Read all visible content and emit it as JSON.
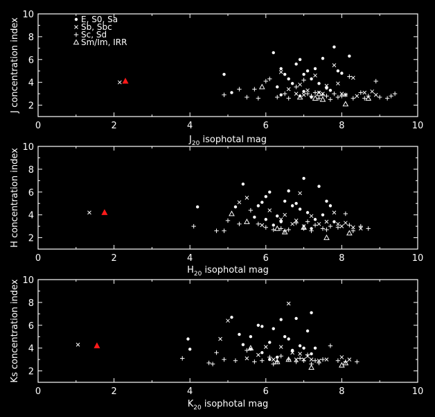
{
  "chart_data": [
    {
      "type": "scatter",
      "xlabel": "J",
      "xlabel_sub": "20",
      "xlabel_rest": " isophotal mag",
      "ylabel": "J concentration index",
      "xlim": [
        0,
        10
      ],
      "ylim": [
        1,
        10
      ],
      "xticks": [
        0,
        2,
        4,
        6,
        8,
        10
      ],
      "yticks": [
        2,
        4,
        6,
        8,
        10
      ],
      "legend": {
        "placement": "top-left",
        "entries": [
          {
            "symbol": "dot",
            "label": "E, S0, Sa"
          },
          {
            "symbol": "cross",
            "label": "Sb, Sbc"
          },
          {
            "symbol": "plus",
            "label": "Sc, Sd"
          },
          {
            "symbol": "triangle",
            "label": "Sm/Im, IRR"
          }
        ]
      },
      "series": [
        {
          "symbol": "dot",
          "points": [
            [
              4.9,
              4.7
            ],
            [
              6.2,
              6.6
            ],
            [
              6.4,
              5.2
            ],
            [
              6.5,
              4.7
            ],
            [
              6.6,
              4.3
            ],
            [
              6.8,
              5.6
            ],
            [
              6.9,
              6.0
            ],
            [
              7.0,
              4.7
            ],
            [
              7.1,
              5.0
            ],
            [
              7.2,
              4.3
            ],
            [
              7.3,
              5.2
            ],
            [
              7.4,
              3.9
            ],
            [
              7.5,
              6.1
            ],
            [
              7.6,
              3.5
            ],
            [
              7.8,
              7.1
            ],
            [
              7.9,
              5.0
            ],
            [
              8.0,
              4.8
            ],
            [
              8.2,
              6.3
            ],
            [
              6.3,
              3.6
            ],
            [
              6.7,
              3.9
            ],
            [
              7.0,
              3.2
            ],
            [
              5.1,
              3.1
            ],
            [
              7.7,
              3.3
            ],
            [
              6.9,
              2.8
            ],
            [
              6.4,
              2.9
            ],
            [
              7.2,
              2.7
            ]
          ]
        },
        {
          "symbol": "cross",
          "points": [
            [
              2.15,
              4.0
            ],
            [
              6.4,
              4.9
            ],
            [
              6.6,
              3.4
            ],
            [
              6.9,
              3.8
            ],
            [
              7.1,
              3.3
            ],
            [
              7.3,
              4.6
            ],
            [
              7.5,
              3.0
            ],
            [
              7.6,
              3.7
            ],
            [
              7.8,
              5.5
            ],
            [
              7.9,
              3.9
            ],
            [
              8.0,
              3.0
            ],
            [
              8.1,
              2.9
            ],
            [
              8.3,
              4.4
            ],
            [
              8.4,
              2.8
            ],
            [
              8.6,
              3.1
            ],
            [
              8.8,
              3.2
            ],
            [
              8.9,
              2.9
            ],
            [
              7.0,
              2.9
            ],
            [
              6.8,
              3.0
            ],
            [
              7.4,
              3.1
            ]
          ]
        },
        {
          "symbol": "plus",
          "points": [
            [
              4.9,
              2.9
            ],
            [
              5.3,
              3.4
            ],
            [
              5.5,
              2.7
            ],
            [
              5.7,
              3.4
            ],
            [
              5.8,
              2.6
            ],
            [
              6.0,
              4.1
            ],
            [
              6.1,
              4.3
            ],
            [
              6.3,
              2.7
            ],
            [
              6.5,
              3.0
            ],
            [
              6.8,
              3.6
            ],
            [
              7.0,
              4.2
            ],
            [
              7.1,
              3.0
            ],
            [
              7.2,
              2.8
            ],
            [
              7.3,
              3.1
            ],
            [
              7.5,
              2.9
            ],
            [
              7.6,
              2.8
            ],
            [
              7.8,
              3.0
            ],
            [
              8.0,
              2.8
            ],
            [
              8.2,
              4.5
            ],
            [
              8.3,
              2.6
            ],
            [
              8.5,
              3.1
            ],
            [
              8.7,
              2.8
            ],
            [
              8.9,
              4.1
            ],
            [
              9.0,
              2.7
            ],
            [
              9.2,
              2.6
            ],
            [
              9.4,
              3.0
            ],
            [
              7.7,
              2.5
            ],
            [
              7.9,
              2.7
            ],
            [
              6.6,
              2.6
            ],
            [
              7.4,
              2.6
            ],
            [
              8.1,
              2.9
            ],
            [
              8.6,
              2.6
            ],
            [
              9.3,
              2.8
            ]
          ]
        },
        {
          "symbol": "triangle",
          "points": [
            [
              5.9,
              3.6
            ],
            [
              7.4,
              3.0
            ],
            [
              7.3,
              2.6
            ],
            [
              7.5,
              2.5
            ],
            [
              8.1,
              2.1
            ],
            [
              8.7,
              2.6
            ],
            [
              6.9,
              2.7
            ]
          ]
        },
        {
          "symbol": "red-triangle",
          "points": [
            [
              2.3,
              4.1
            ]
          ]
        }
      ]
    },
    {
      "type": "scatter",
      "xlabel": "H",
      "xlabel_sub": "20",
      "xlabel_rest": " isophotal mag",
      "ylabel": "H concentration index",
      "xlim": [
        0,
        10
      ],
      "ylim": [
        1,
        10
      ],
      "xticks": [
        0,
        2,
        4,
        6,
        8,
        10
      ],
      "yticks": [
        2,
        4,
        6,
        8,
        10
      ],
      "series": [
        {
          "symbol": "dot",
          "points": [
            [
              4.2,
              4.7
            ],
            [
              5.4,
              6.7
            ],
            [
              5.2,
              4.7
            ],
            [
              5.9,
              5.1
            ],
            [
              6.0,
              5.6
            ],
            [
              6.1,
              6.0
            ],
            [
              6.3,
              3.9
            ],
            [
              6.5,
              5.2
            ],
            [
              6.6,
              6.1
            ],
            [
              6.7,
              4.8
            ],
            [
              6.8,
              5.0
            ],
            [
              6.9,
              4.5
            ],
            [
              7.0,
              7.2
            ],
            [
              7.1,
              4.2
            ],
            [
              7.3,
              3.6
            ],
            [
              7.4,
              6.5
            ],
            [
              7.5,
              4.0
            ],
            [
              7.6,
              5.2
            ],
            [
              7.7,
              4.8
            ],
            [
              7.8,
              3.4
            ],
            [
              5.7,
              3.8
            ],
            [
              6.0,
              3.6
            ],
            [
              6.4,
              3.4
            ],
            [
              5.8,
              4.8
            ],
            [
              7.2,
              2.8
            ],
            [
              6.2,
              3.1
            ]
          ]
        },
        {
          "symbol": "cross",
          "points": [
            [
              1.35,
              4.2
            ],
            [
              5.3,
              5.1
            ],
            [
              5.9,
              3.1
            ],
            [
              6.1,
              4.4
            ],
            [
              6.4,
              3.6
            ],
            [
              6.5,
              4.0
            ],
            [
              6.7,
              3.2
            ],
            [
              6.9,
              5.9
            ],
            [
              7.0,
              3.0
            ],
            [
              7.2,
              3.9
            ],
            [
              7.4,
              3.2
            ],
            [
              7.6,
              3.4
            ],
            [
              7.8,
              4.2
            ],
            [
              8.0,
              3.0
            ],
            [
              8.1,
              3.3
            ],
            [
              8.3,
              2.9
            ],
            [
              8.5,
              2.8
            ],
            [
              5.5,
              5.5
            ],
            [
              6.8,
              3.5
            ],
            [
              7.9,
              3.2
            ]
          ]
        },
        {
          "symbol": "plus",
          "points": [
            [
              4.1,
              3.0
            ],
            [
              4.7,
              2.6
            ],
            [
              4.9,
              2.6
            ],
            [
              5.0,
              3.5
            ],
            [
              5.3,
              3.2
            ],
            [
              5.6,
              4.4
            ],
            [
              5.8,
              3.2
            ],
            [
              6.0,
              2.9
            ],
            [
              6.2,
              2.7
            ],
            [
              6.4,
              2.8
            ],
            [
              6.6,
              2.7
            ],
            [
              6.8,
              3.3
            ],
            [
              7.0,
              2.8
            ],
            [
              7.1,
              3.4
            ],
            [
              7.2,
              2.6
            ],
            [
              7.3,
              3.1
            ],
            [
              7.5,
              2.8
            ],
            [
              7.7,
              3.0
            ],
            [
              7.9,
              2.9
            ],
            [
              8.1,
              4.1
            ],
            [
              8.3,
              2.6
            ],
            [
              8.5,
              3.0
            ],
            [
              8.7,
              2.8
            ],
            [
              6.5,
              2.6
            ],
            [
              7.6,
              2.7
            ],
            [
              8.2,
              3.1
            ]
          ]
        },
        {
          "symbol": "triangle",
          "points": [
            [
              5.1,
              4.1
            ],
            [
              5.5,
              3.4
            ],
            [
              6.5,
              2.5
            ],
            [
              7.6,
              2.0
            ],
            [
              8.2,
              2.4
            ],
            [
              7.0,
              2.9
            ],
            [
              6.3,
              2.8
            ]
          ]
        },
        {
          "symbol": "red-triangle",
          "points": [
            [
              1.75,
              4.2
            ]
          ]
        }
      ]
    },
    {
      "type": "scatter",
      "xlabel": "K",
      "xlabel_sub": "20",
      "xlabel_rest": " isophotal mag",
      "ylabel": "Ks concentration index",
      "xlim": [
        0,
        10
      ],
      "ylim": [
        1,
        10
      ],
      "xticks": [
        0,
        2,
        4,
        6,
        8,
        10
      ],
      "yticks": [
        2,
        4,
        6,
        8,
        10
      ],
      "series": [
        {
          "symbol": "dot",
          "points": [
            [
              3.95,
              4.8
            ],
            [
              5.1,
              6.7
            ],
            [
              5.3,
              5.2
            ],
            [
              5.6,
              5.0
            ],
            [
              5.8,
              6.0
            ],
            [
              5.9,
              5.9
            ],
            [
              6.1,
              4.5
            ],
            [
              6.2,
              5.7
            ],
            [
              6.4,
              6.5
            ],
            [
              6.5,
              5.0
            ],
            [
              6.6,
              4.8
            ],
            [
              6.8,
              6.6
            ],
            [
              6.9,
              4.2
            ],
            [
              7.0,
              4.0
            ],
            [
              7.1,
              5.5
            ],
            [
              7.2,
              3.5
            ],
            [
              7.3,
              4.0
            ],
            [
              5.4,
              4.3
            ],
            [
              5.6,
              3.9
            ],
            [
              5.9,
              3.6
            ],
            [
              6.7,
              3.8
            ],
            [
              4.0,
              3.9
            ],
            [
              6.3,
              3.2
            ],
            [
              7.2,
              7.1
            ],
            [
              6.1,
              3.0
            ]
          ]
        },
        {
          "symbol": "cross",
          "points": [
            [
              1.05,
              4.3
            ],
            [
              4.8,
              4.8
            ],
            [
              5.0,
              6.4
            ],
            [
              5.5,
              3.1
            ],
            [
              6.0,
              4.1
            ],
            [
              6.2,
              3.0
            ],
            [
              6.4,
              4.1
            ],
            [
              6.6,
              7.9
            ],
            [
              6.8,
              3.0
            ],
            [
              6.9,
              3.5
            ],
            [
              7.0,
              3.0
            ],
            [
              7.1,
              3.3
            ],
            [
              7.2,
              3.0
            ],
            [
              7.4,
              2.9
            ],
            [
              7.6,
              3.0
            ],
            [
              8.0,
              3.2
            ],
            [
              8.2,
              3.0
            ],
            [
              6.7,
              3.6
            ],
            [
              5.8,
              3.4
            ]
          ]
        },
        {
          "symbol": "plus",
          "points": [
            [
              3.8,
              3.1
            ],
            [
              4.5,
              2.7
            ],
            [
              4.7,
              3.6
            ],
            [
              4.9,
              3.0
            ],
            [
              5.2,
              2.9
            ],
            [
              5.5,
              3.8
            ],
            [
              5.7,
              2.8
            ],
            [
              5.9,
              2.9
            ],
            [
              6.1,
              3.2
            ],
            [
              6.3,
              2.8
            ],
            [
              6.4,
              3.3
            ],
            [
              6.6,
              3.0
            ],
            [
              6.8,
              2.8
            ],
            [
              6.9,
              3.1
            ],
            [
              7.0,
              2.9
            ],
            [
              7.1,
              3.4
            ],
            [
              7.3,
              2.9
            ],
            [
              7.4,
              2.7
            ],
            [
              7.5,
              3.0
            ],
            [
              7.7,
              4.2
            ],
            [
              7.9,
              2.9
            ],
            [
              8.1,
              2.8
            ],
            [
              8.4,
              2.8
            ],
            [
              6.2,
              2.6
            ],
            [
              7.2,
              2.6
            ],
            [
              4.6,
              2.6
            ]
          ]
        },
        {
          "symbol": "triangle",
          "points": [
            [
              5.6,
              4.0
            ],
            [
              6.3,
              2.8
            ],
            [
              7.2,
              2.3
            ],
            [
              8.0,
              2.5
            ],
            [
              8.1,
              2.7
            ],
            [
              6.6,
              3.0
            ]
          ]
        },
        {
          "symbol": "red-triangle",
          "points": [
            [
              1.55,
              4.2
            ]
          ]
        }
      ]
    }
  ]
}
